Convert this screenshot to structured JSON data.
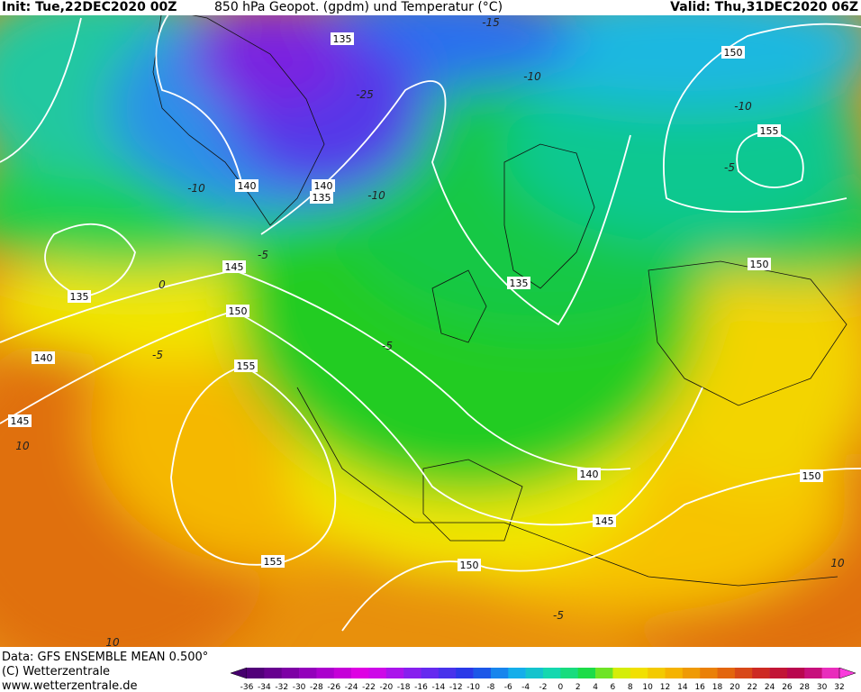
{
  "header": {
    "init": "Init: Tue,22DEC2020 00Z",
    "title": "850 hPa Geopot. (gpdm) und Temperatur (°C)",
    "valid": "Valid: Thu,31DEC2020 06Z"
  },
  "geopotential_labels": [
    135,
    150,
    155,
    140,
    140,
    135,
    145,
    150,
    135,
    135,
    150,
    140,
    155,
    145,
    140,
    145,
    150,
    155,
    150
  ],
  "temperature_labels": [
    -15,
    -10,
    -25,
    -10,
    -10,
    -10,
    -5,
    0,
    -5,
    -5,
    -5,
    10,
    10,
    -5,
    10
  ],
  "footer": {
    "data": "Data: GFS ENSEMBLE MEAN 0.500°",
    "copyright": "(C) Wetterzentrale",
    "url": "www.wetterzentrale.de"
  },
  "colorbar": {
    "ticks": [
      -36,
      -34,
      -32,
      -30,
      -28,
      -26,
      -24,
      -22,
      -20,
      -18,
      -16,
      -14,
      -12,
      -10,
      -8,
      -6,
      -4,
      -2,
      0,
      2,
      4,
      6,
      8,
      10,
      12,
      14,
      16,
      18,
      20,
      22,
      24,
      26,
      28,
      30,
      32
    ]
  }
}
